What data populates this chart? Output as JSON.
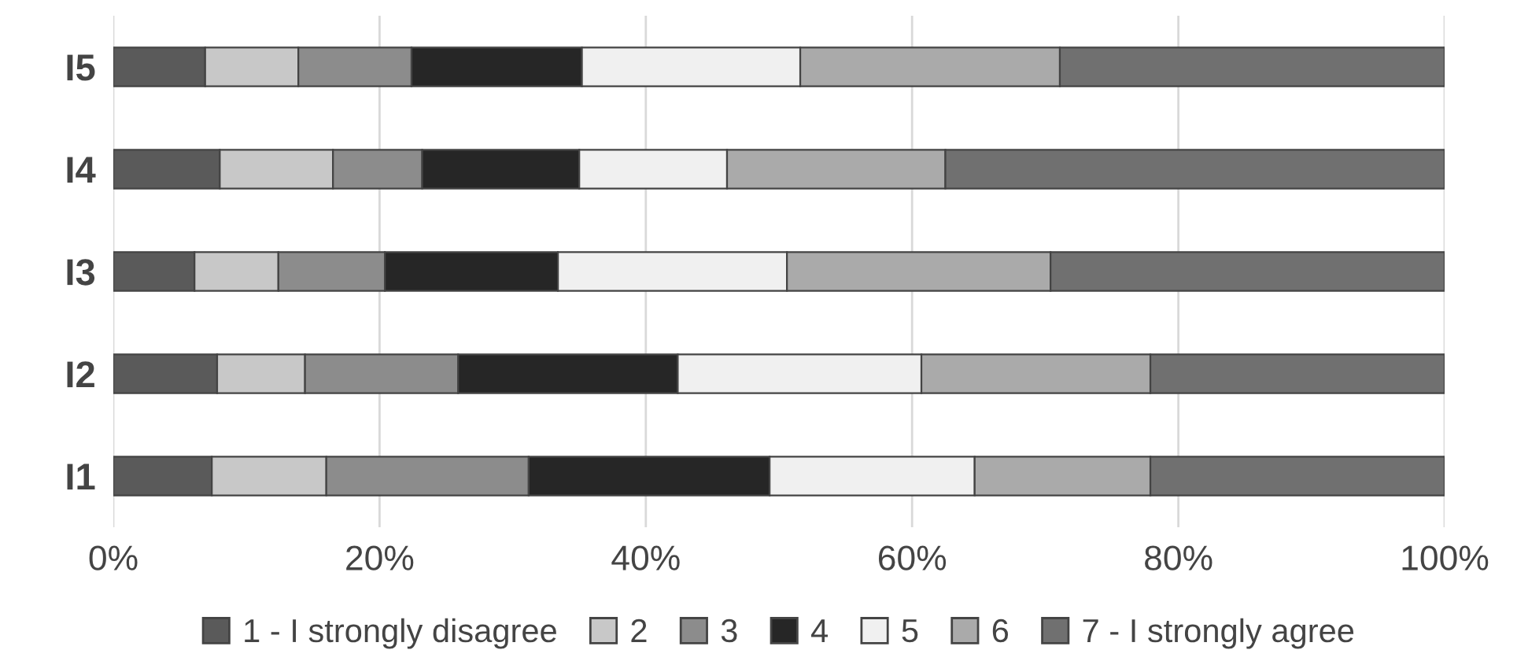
{
  "chart_data": {
    "type": "bar",
    "orientation": "horizontal",
    "stacked": true,
    "categories": [
      "I5",
      "I4",
      "I3",
      "I2",
      "I1"
    ],
    "series": [
      {
        "name": "1 - I strongly disagree",
        "color": "#5a5a5a",
        "values": [
          6.9,
          8.0,
          6.1,
          7.8,
          7.4
        ]
      },
      {
        "name": "2",
        "color": "#c8c8c8",
        "values": [
          7.0,
          8.5,
          6.3,
          6.6,
          8.6
        ]
      },
      {
        "name": "3",
        "color": "#8c8c8c",
        "values": [
          8.5,
          6.7,
          8.0,
          11.5,
          15.2
        ]
      },
      {
        "name": "4",
        "color": "#262626",
        "values": [
          12.8,
          11.8,
          13.0,
          16.5,
          18.1
        ]
      },
      {
        "name": "5",
        "color": "#f0f0f0",
        "values": [
          16.4,
          11.1,
          17.2,
          18.3,
          15.4
        ]
      },
      {
        "name": "6",
        "color": "#aaaaaa",
        "values": [
          19.5,
          16.4,
          19.8,
          17.2,
          13.2
        ]
      },
      {
        "name": "7 - I strongly agree",
        "color": "#707070",
        "values": [
          28.9,
          37.5,
          29.6,
          22.1,
          22.1
        ]
      }
    ],
    "xlim": [
      0,
      100
    ],
    "xticks": [
      {
        "value": 0,
        "label": "0%"
      },
      {
        "value": 20,
        "label": "20%"
      },
      {
        "value": 40,
        "label": "40%"
      },
      {
        "value": 60,
        "label": "60%"
      },
      {
        "value": 80,
        "label": "80%"
      },
      {
        "value": 100,
        "label": "100%"
      }
    ],
    "grid": "x",
    "legend": "bottom"
  }
}
